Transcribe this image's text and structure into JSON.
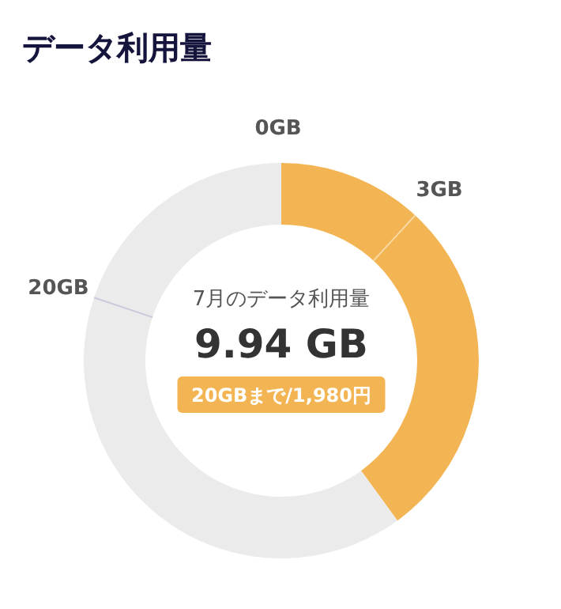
{
  "chart_data": {
    "type": "donut",
    "title": "データ利用量",
    "categories": [
      null,
      null
    ],
    "values": [
      40,
      60
    ],
    "colors": [
      "#f3b553",
      "#ebebeb"
    ],
    "annotations": [
      "0GB",
      "3GB",
      "20GB",
      "7月のデータ利用量",
      "9.94 GB",
      "20GBまで/1,980円"
    ]
  }
}
